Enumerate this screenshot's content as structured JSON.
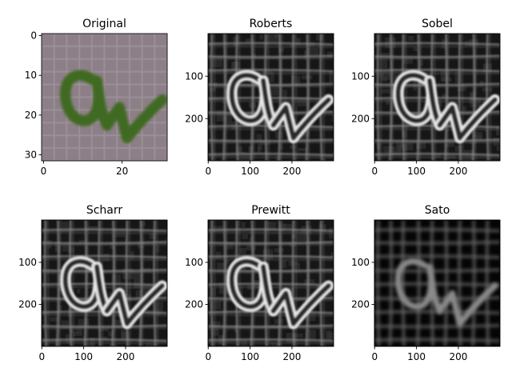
{
  "figure": {
    "background": "#ffffff"
  },
  "chart_data": [
    {
      "type": "heatmap",
      "title": "Original",
      "colormap": "rgb",
      "xlim": [
        -0.5,
        31.5
      ],
      "ylim": [
        31.5,
        -0.5
      ],
      "x_ticks": [
        0,
        20
      ],
      "y_ticks": [
        0,
        10,
        20,
        30
      ],
      "content": "green handwritten 'a' with check-like tail on mauve grid background",
      "bg_color": "#8d7f87",
      "grid_color": "#9e939a",
      "ink_color": "#3f6b22"
    },
    {
      "type": "heatmap",
      "title": "Roberts",
      "colormap": "gray",
      "xlim": [
        -0.5,
        299.5
      ],
      "ylim": [
        299.5,
        -0.5
      ],
      "x_ticks": [
        0,
        100,
        200
      ],
      "y_ticks": [
        100,
        200
      ],
      "content": "edge magnitude of upscaled image"
    },
    {
      "type": "heatmap",
      "title": "Sobel",
      "colormap": "gray",
      "xlim": [
        -0.5,
        299.5
      ],
      "ylim": [
        299.5,
        -0.5
      ],
      "x_ticks": [
        0,
        100,
        200
      ],
      "y_ticks": [
        100,
        200
      ],
      "content": "edge magnitude of upscaled image"
    },
    {
      "type": "heatmap",
      "title": "Scharr",
      "colormap": "gray",
      "xlim": [
        -0.5,
        299.5
      ],
      "ylim": [
        299.5,
        -0.5
      ],
      "x_ticks": [
        0,
        100,
        200
      ],
      "y_ticks": [
        100,
        200
      ],
      "content": "edge magnitude of upscaled image"
    },
    {
      "type": "heatmap",
      "title": "Prewitt",
      "colormap": "gray",
      "xlim": [
        -0.5,
        299.5
      ],
      "ylim": [
        299.5,
        -0.5
      ],
      "x_ticks": [
        0,
        100,
        200
      ],
      "y_ticks": [
        100,
        200
      ],
      "content": "edge magnitude of upscaled image"
    },
    {
      "type": "heatmap",
      "title": "Sato",
      "colormap": "gray",
      "xlim": [
        -0.5,
        299.5
      ],
      "ylim": [
        299.5,
        -0.5
      ],
      "x_ticks": [
        0,
        100,
        200
      ],
      "y_ticks": [
        100,
        200
      ],
      "content": "ridge (Sato) filter response, smooth tubular grid lines"
    }
  ]
}
